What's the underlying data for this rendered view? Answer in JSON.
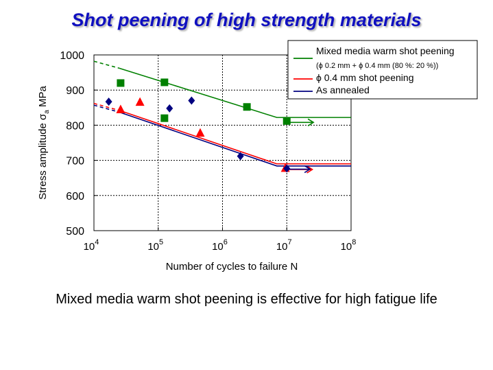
{
  "slide": {
    "title": "Shot peening of high strength materials",
    "caption": "Mixed media warm shot peening is effective for high fatigue life"
  },
  "chart_data": {
    "type": "scatter",
    "xscale": "log",
    "xlim": [
      10000,
      100000000
    ],
    "ylim": [
      500,
      1000
    ],
    "xlabel": "Number of cycles to failure N",
    "ylabel": "Stress amplitude σa MPa",
    "xticks": [
      {
        "base": "10",
        "exp": "4",
        "value": 10000
      },
      {
        "base": "10",
        "exp": "5",
        "value": 100000
      },
      {
        "base": "10",
        "exp": "6",
        "value": 1000000
      },
      {
        "base": "10",
        "exp": "7",
        "value": 10000000
      },
      {
        "base": "10",
        "exp": "8",
        "value": 100000000
      }
    ],
    "yticks": [
      "500",
      "600",
      "700",
      "800",
      "900",
      "1000"
    ],
    "grid": true,
    "legend_position": "top-right",
    "legend": [
      {
        "label": "Mixed media warm shot peening",
        "sublabel": "(ϕ 0.2 mm + ϕ 0.4 mm (80 %: 20 %))",
        "color": "#008000"
      },
      {
        "label": "ϕ 0.4 mm shot peening",
        "color": "#ff0000"
      },
      {
        "label": "As annealed",
        "color": "#000080"
      }
    ],
    "series": [
      {
        "color": "#008000",
        "marker": "square",
        "points": [
          [
            26000,
            920
          ],
          [
            125000,
            922
          ],
          [
            125000,
            820
          ],
          [
            2400000,
            852
          ],
          [
            10000000,
            812
          ]
        ],
        "fit_dashed": [
          [
            10000,
            982
          ],
          [
            25000,
            962
          ]
        ],
        "fit_solid": [
          [
            25000,
            962
          ],
          [
            7000000,
            822
          ],
          [
            100000000,
            822
          ]
        ],
        "runout": {
          "x": [
            10000000,
            26000000
          ],
          "y": 808
        }
      },
      {
        "color": "#ff0000",
        "marker": "triangle",
        "points": [
          [
            26000,
            845
          ],
          [
            52000,
            866
          ],
          [
            450000,
            778
          ],
          [
            9500000,
            678
          ]
        ],
        "fit_dashed": [
          [
            10000,
            862
          ],
          [
            25000,
            842
          ]
        ],
        "fit_solid": [
          [
            25000,
            842
          ],
          [
            7000000,
            690
          ],
          [
            100000000,
            690
          ]
        ],
        "runout": {
          "x": [
            10000000,
            25000000
          ],
          "y": 674
        }
      },
      {
        "color": "#000080",
        "marker": "diamond",
        "points": [
          [
            17000,
            867
          ],
          [
            150000,
            848
          ],
          [
            330000,
            870
          ],
          [
            1900000,
            712
          ],
          [
            10000000,
            677
          ]
        ],
        "fit_dashed": [
          [
            10000,
            857
          ],
          [
            25000,
            837
          ]
        ],
        "fit_solid": [
          [
            25000,
            837
          ],
          [
            7000000,
            684
          ],
          [
            100000000,
            684
          ]
        ],
        "runout": {
          "x": [
            10000000,
            23000000
          ],
          "y": 675
        }
      }
    ]
  }
}
